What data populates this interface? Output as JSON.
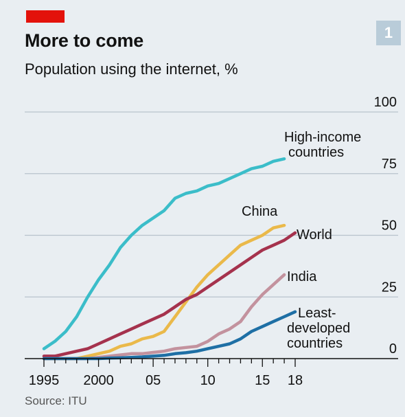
{
  "header": {
    "title": "More to come",
    "subtitle": "Population using the internet, %",
    "badge": "1"
  },
  "footer": {
    "source": "Source: ITU"
  },
  "colors": {
    "background": "#e9eef2",
    "accent_red": "#e3120b",
    "badge": "#b9ccd9",
    "grid": "#b8c3cc",
    "axis": "#111111"
  },
  "chart_data": {
    "type": "line",
    "title": "More to come",
    "subtitle": "Population using the internet, %",
    "xlim": [
      1995,
      2018
    ],
    "ylim": [
      0,
      100
    ],
    "y_ticks": [
      0,
      25,
      50,
      75,
      100
    ],
    "y_tick_labels": [
      "0",
      "25",
      "50",
      "75",
      "100"
    ],
    "x_ticks": [
      1995,
      2000,
      2005,
      2010,
      2015,
      2018
    ],
    "x_tick_labels": [
      "1995",
      "2000",
      "05",
      "10",
      "15",
      "18"
    ],
    "grid": true,
    "series": [
      {
        "name": "High-income countries",
        "label_lines": [
          "High-income",
          "countries"
        ],
        "color": "#3bbdc9",
        "x": [
          1995,
          1996,
          1997,
          1998,
          1999,
          2000,
          2001,
          2002,
          2003,
          2004,
          2005,
          2006,
          2007,
          2008,
          2009,
          2010,
          2011,
          2012,
          2013,
          2014,
          2015,
          2016,
          2017
        ],
        "y": [
          4,
          7,
          11,
          17,
          25,
          32,
          38,
          45,
          50,
          54,
          57,
          60,
          65,
          67,
          68,
          70,
          71,
          73,
          75,
          77,
          78,
          80,
          81
        ]
      },
      {
        "name": "China",
        "label_lines": [
          "China"
        ],
        "color": "#eab94a",
        "x": [
          1995,
          1996,
          1997,
          1998,
          1999,
          2000,
          2001,
          2002,
          2003,
          2004,
          2005,
          2006,
          2007,
          2008,
          2009,
          2010,
          2011,
          2012,
          2013,
          2014,
          2015,
          2016,
          2017
        ],
        "y": [
          0,
          0,
          0,
          0,
          1,
          2,
          3,
          5,
          6,
          8,
          9,
          11,
          17,
          23,
          29,
          34,
          38,
          42,
          46,
          48,
          50,
          53,
          54
        ]
      },
      {
        "name": "World",
        "label_lines": [
          "World"
        ],
        "color": "#a5324d",
        "x": [
          1995,
          1996,
          1997,
          1998,
          1999,
          2000,
          2001,
          2002,
          2003,
          2004,
          2005,
          2006,
          2007,
          2008,
          2009,
          2010,
          2011,
          2012,
          2013,
          2014,
          2015,
          2016,
          2017,
          2018
        ],
        "y": [
          1,
          1,
          2,
          3,
          4,
          6,
          8,
          10,
          12,
          14,
          16,
          18,
          21,
          24,
          26,
          29,
          32,
          35,
          38,
          41,
          44,
          46,
          48,
          51
        ]
      },
      {
        "name": "India",
        "label_lines": [
          "India"
        ],
        "color": "#c3929e",
        "x": [
          1995,
          1996,
          1997,
          1998,
          1999,
          2000,
          2001,
          2002,
          2003,
          2004,
          2005,
          2006,
          2007,
          2008,
          2009,
          2010,
          2011,
          2012,
          2013,
          2014,
          2015,
          2016,
          2017
        ],
        "y": [
          0,
          0,
          0,
          0,
          0,
          0.5,
          1,
          1.5,
          2,
          2,
          2.5,
          3,
          4,
          4.5,
          5,
          7,
          10,
          12,
          15,
          21,
          26,
          30,
          34
        ]
      },
      {
        "name": "Least-developed countries",
        "label_lines": [
          "Least-",
          "developed",
          "countries"
        ],
        "color": "#1e6fa5",
        "x": [
          1995,
          1996,
          1997,
          1998,
          1999,
          2000,
          2001,
          2002,
          2003,
          2004,
          2005,
          2006,
          2007,
          2008,
          2009,
          2010,
          2011,
          2012,
          2013,
          2014,
          2015,
          2016,
          2017,
          2018
        ],
        "y": [
          0,
          0,
          0,
          0,
          0,
          0,
          0.2,
          0.3,
          0.5,
          0.7,
          1,
          1.3,
          2,
          2.4,
          3,
          4,
          5,
          6,
          8,
          11,
          13,
          15,
          17,
          19
        ]
      }
    ]
  }
}
